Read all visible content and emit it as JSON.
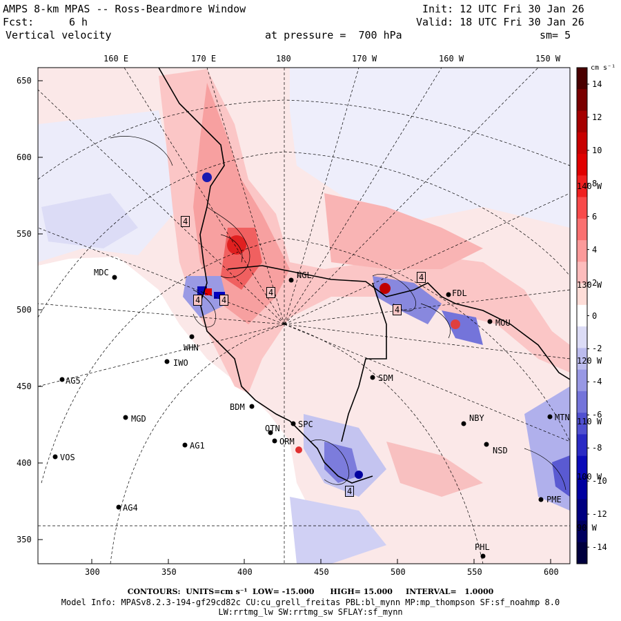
{
  "header": {
    "title": "AMPS 8-km MPAS -- Ross-Beardmore Window",
    "init": "Init: 12 UTC Fri 30 Jan 26",
    "fcst_label": "Fcst:",
    "fcst_value": "6 h",
    "valid": "Valid: 18 UTC Fri 30 Jan 26",
    "field": "Vertical velocity",
    "pressure": "at pressure =  700 hPa",
    "smoothing": "sm= 5"
  },
  "axes": {
    "top_longitudes": [
      "160 E",
      "170 E",
      "180",
      "170 W",
      "160 W",
      "150 W"
    ],
    "x_ticks": [
      "300",
      "350",
      "400",
      "450",
      "500",
      "550",
      "600"
    ],
    "y_ticks": [
      "650",
      "600",
      "550",
      "500",
      "450",
      "400",
      "350"
    ],
    "right_longitudes": [
      "140 W",
      "130 W",
      "120 W",
      "110 W",
      "100 W",
      "90 W"
    ]
  },
  "colorbar": {
    "units": "cm s⁻¹",
    "ticks": [
      "14",
      "12",
      "10",
      "8",
      "6",
      "4",
      "2",
      "0",
      "-2",
      "-4",
      "-6",
      "-8",
      "-10",
      "-12",
      "-14"
    ],
    "colors": [
      "#4a0000",
      "#7a0000",
      "#a50000",
      "#c80000",
      "#e00000",
      "#f02020",
      "#f84a4a",
      "#fa7070",
      "#fc9a9a",
      "#fdbcbc",
      "#feddd8",
      "#ffffff",
      "#dcdcf6",
      "#bcbcee",
      "#9898e4",
      "#7474da",
      "#5050d0",
      "#2a2ac4",
      "#0a0ab8",
      "#0000a0",
      "#000080",
      "#000060",
      "#00003e"
    ]
  },
  "stations": [
    {
      "code": "MDC"
    },
    {
      "code": "AG5"
    },
    {
      "code": "IWO"
    },
    {
      "code": "WHN"
    },
    {
      "code": "MGD"
    },
    {
      "code": "AG1"
    },
    {
      "code": "VOS"
    },
    {
      "code": "AG4"
    },
    {
      "code": "BDM"
    },
    {
      "code": "OTN"
    },
    {
      "code": "ORM"
    },
    {
      "code": "SPC"
    },
    {
      "code": "NGL"
    },
    {
      "code": "SDM"
    },
    {
      "code": "MOU"
    },
    {
      "code": "FDL"
    },
    {
      "code": "NBY"
    },
    {
      "code": "MTN"
    },
    {
      "code": "NSD"
    },
    {
      "code": "PME"
    },
    {
      "code": "PHL"
    }
  ],
  "contour_labels": [
    "4",
    "4",
    "4",
    "4",
    "4",
    "4",
    "4"
  ],
  "footer": {
    "contours": "CONTOURS:  UNITS=cm s⁻¹  LOW= -15.000      HIGH= 15.000     INTERVAL=   1.0000",
    "model_info": "Model Info: MPASv8.2.3-194-gf29cd82c CU:cu_grell_freitas PBL:bl_mynn MP:mp_thompson SF:sf_noahmp 8.0",
    "model_info2": "LW:rrtmg_lw SW:rrtmg_sw SFLAY:sf_mynn"
  }
}
